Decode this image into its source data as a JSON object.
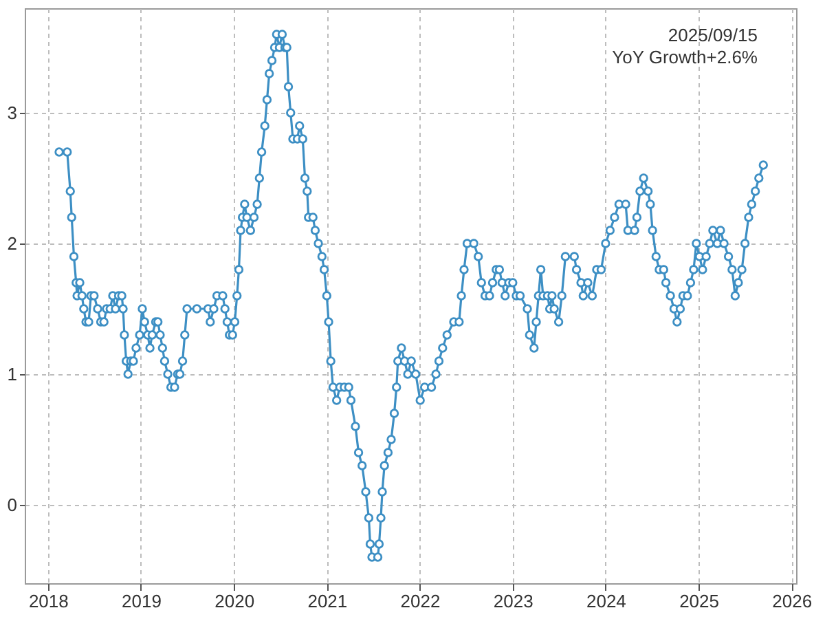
{
  "chart_data": {
    "type": "line",
    "annotations": [
      "2025/09/15",
      "YoY Growth+2.6%"
    ],
    "x": [
      2018.12,
      2018.207,
      2018.24,
      2018.255,
      2018.279,
      2018.303,
      2018.313,
      2018.342,
      2018.366,
      2018.385,
      2018.409,
      2018.438,
      2018.462,
      2018.496,
      2018.534,
      2018.568,
      2018.602,
      2018.63,
      2018.669,
      2018.697,
      2018.726,
      2018.76,
      2018.794,
      2018.808,
      2018.822,
      2018.842,
      2018.861,
      2018.89,
      2018.919,
      2018.948,
      2018.986,
      2019.015,
      2019.039,
      2019.073,
      2019.097,
      2019.121,
      2019.159,
      2019.183,
      2019.207,
      2019.232,
      2019.255,
      2019.289,
      2019.323,
      2019.362,
      2019.395,
      2019.419,
      2019.448,
      2019.472,
      2019.496,
      2019.602,
      2019.722,
      2019.746,
      2019.784,
      2019.818,
      2019.88,
      2019.904,
      2019.928,
      2019.952,
      2019.986,
      2020.01,
      2020.034,
      2020.054,
      2020.073,
      2020.092,
      2020.116,
      2020.14,
      2020.179,
      2020.217,
      2020.251,
      2020.275,
      2020.299,
      2020.333,
      2020.357,
      2020.381,
      2020.41,
      2020.439,
      2020.46,
      2020.49,
      2020.52,
      2020.55,
      2020.57,
      2020.587,
      2020.611,
      2020.635,
      2020.683,
      2020.707,
      2020.741,
      2020.765,
      2020.789,
      2020.803,
      2020.851,
      2020.875,
      2020.909,
      2020.948,
      2020.972,
      2021.0,
      2021.02,
      2021.043,
      2021.067,
      2021.106,
      2021.14,
      2021.188,
      2021.236,
      2021.26,
      2021.308,
      2021.342,
      2021.38,
      2021.419,
      2021.452,
      2021.467,
      2021.486,
      2021.549,
      2021.563,
      2021.582,
      2021.597,
      2021.62,
      2021.659,
      2021.693,
      2021.726,
      2021.75,
      2021.765,
      2021.803,
      2021.837,
      2021.871,
      2021.909,
      2021.957,
      2022.005,
      2022.053,
      2022.126,
      2022.174,
      2022.207,
      2022.246,
      2022.294,
      2022.366,
      2022.424,
      2022.448,
      2022.477,
      2022.51,
      2022.582,
      2022.63,
      2022.664,
      2022.703,
      2022.751,
      2022.784,
      2022.823,
      2022.857,
      2022.886,
      2022.919,
      2022.958,
      2023.001,
      2023.039,
      2023.08,
      2023.158,
      2023.182,
      2023.23,
      2023.254,
      2023.278,
      2023.303,
      2023.327,
      2023.375,
      2023.399,
      2023.423,
      2023.447,
      2023.495,
      2023.529,
      2023.567,
      2023.663,
      2023.687,
      2023.735,
      2023.759,
      2023.808,
      2023.856,
      2023.904,
      2023.952,
      2024.0,
      2024.048,
      2024.096,
      2024.144,
      2024.216,
      2024.24,
      2024.312,
      2024.337,
      2024.37,
      2024.409,
      2024.457,
      2024.481,
      2024.505,
      2024.543,
      2024.577,
      2024.625,
      2024.649,
      2024.697,
      2024.736,
      2024.769,
      2024.803,
      2024.832,
      2024.88,
      2024.914,
      2024.947,
      2024.976,
      2025.01,
      2025.043,
      2025.082,
      2025.12,
      2025.154,
      2025.202,
      2025.236,
      2025.274,
      2025.322,
      2025.361,
      2025.394,
      2025.428,
      2025.466,
      2025.5,
      2025.539,
      2025.572,
      2025.611,
      2025.649,
      2025.697
    ],
    "series": [
      {
        "color": "#3d8fc4",
        "values": [
          2.7,
          2.7,
          2.4,
          2.2,
          1.9,
          1.7,
          1.6,
          1.7,
          1.6,
          1.5,
          1.4,
          1.4,
          1.6,
          1.6,
          1.5,
          1.4,
          1.4,
          1.5,
          1.5,
          1.6,
          1.5,
          1.6,
          1.6,
          1.5,
          1.3,
          1.1,
          1.0,
          1.1,
          1.1,
          1.2,
          1.3,
          1.5,
          1.4,
          1.3,
          1.2,
          1.3,
          1.4,
          1.4,
          1.3,
          1.2,
          1.1,
          1.0,
          0.9,
          0.9,
          1.0,
          1.0,
          1.1,
          1.3,
          1.5,
          1.5,
          1.5,
          1.4,
          1.5,
          1.6,
          1.6,
          1.5,
          1.4,
          1.3,
          1.3,
          1.4,
          1.6,
          1.8,
          2.1,
          2.2,
          2.3,
          2.2,
          2.1,
          2.2,
          2.3,
          2.5,
          2.7,
          2.9,
          3.1,
          3.3,
          3.4,
          3.5,
          3.6,
          3.5,
          3.6,
          3.5,
          3.5,
          3.2,
          3.0,
          2.8,
          2.8,
          2.9,
          2.8,
          2.5,
          2.4,
          2.2,
          2.2,
          2.1,
          2.0,
          1.9,
          1.8,
          1.6,
          1.4,
          1.1,
          0.9,
          0.8,
          0.9,
          0.9,
          0.9,
          0.8,
          0.6,
          0.4,
          0.3,
          0.1,
          -0.1,
          -0.3,
          -0.4,
          -0.4,
          -0.3,
          -0.1,
          0.1,
          0.3,
          0.4,
          0.5,
          0.7,
          0.9,
          1.1,
          1.2,
          1.1,
          1.0,
          1.1,
          1.0,
          0.8,
          0.9,
          0.9,
          1.0,
          1.1,
          1.2,
          1.3,
          1.4,
          1.4,
          1.6,
          1.8,
          2.0,
          2.0,
          1.9,
          1.7,
          1.6,
          1.6,
          1.7,
          1.8,
          1.8,
          1.7,
          1.6,
          1.7,
          1.7,
          1.6,
          1.6,
          1.5,
          1.3,
          1.2,
          1.4,
          1.6,
          1.8,
          1.6,
          1.6,
          1.5,
          1.6,
          1.5,
          1.4,
          1.6,
          1.9,
          1.9,
          1.8,
          1.7,
          1.6,
          1.7,
          1.6,
          1.8,
          1.8,
          2.0,
          2.1,
          2.2,
          2.3,
          2.3,
          2.1,
          2.1,
          2.2,
          2.4,
          2.5,
          2.4,
          2.3,
          2.1,
          1.9,
          1.8,
          1.8,
          1.7,
          1.6,
          1.5,
          1.4,
          1.5,
          1.6,
          1.6,
          1.7,
          1.8,
          2.0,
          1.9,
          1.8,
          1.9,
          2.0,
          2.1,
          2.0,
          2.1,
          2.0,
          1.9,
          1.8,
          1.6,
          1.7,
          1.8,
          2.0,
          2.2,
          2.3,
          2.4,
          2.5,
          2.6
        ]
      }
    ],
    "xlim": [
      2017.75,
      2026.05
    ],
    "xticks": [
      2018,
      2019,
      2020,
      2021,
      2022,
      2023,
      2024,
      2025,
      2026
    ],
    "ylim": [
      -0.6,
      3.8
    ],
    "yticks": [
      0,
      1,
      2,
      3
    ],
    "grid": true,
    "marker": "circle",
    "line_style": "solid"
  }
}
